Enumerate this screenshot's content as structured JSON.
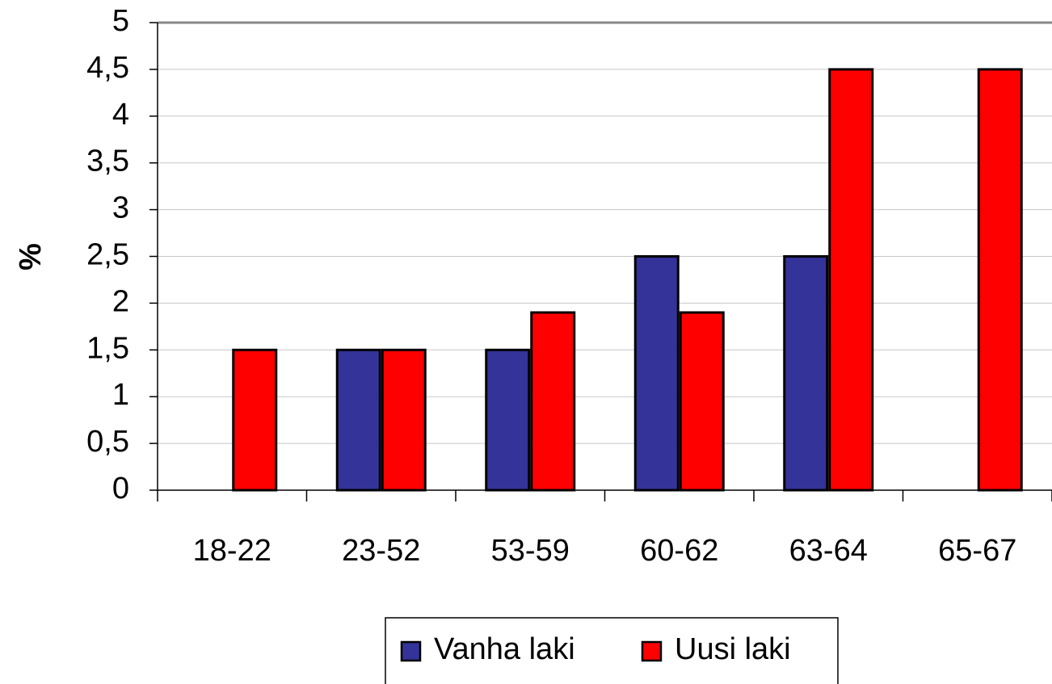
{
  "chart_data": {
    "type": "bar",
    "categories": [
      "18-22",
      "23-52",
      "53-59",
      "60-62",
      "63-64",
      "65-67"
    ],
    "series": [
      {
        "name": "Vanha laki",
        "color": "#333399",
        "values": [
          null,
          1.5,
          1.5,
          2.5,
          2.5,
          null
        ]
      },
      {
        "name": "Uusi laki",
        "color": "#ff0000",
        "values": [
          1.5,
          1.5,
          1.9,
          1.9,
          4.5,
          4.5
        ]
      }
    ],
    "y_label": "%",
    "ylim": [
      0,
      5
    ],
    "yticks": [
      0,
      {
        "value": 0.5,
        "label": "0,5"
      },
      1,
      {
        "value": 1.5,
        "label": "1,5"
      },
      2,
      {
        "value": 2.5,
        "label": "2,5"
      },
      3,
      {
        "value": 3.5,
        "label": "3,5"
      },
      4,
      {
        "value": 4.5,
        "label": "4,5"
      },
      5
    ],
    "grid": true,
    "legend": "bottom"
  }
}
